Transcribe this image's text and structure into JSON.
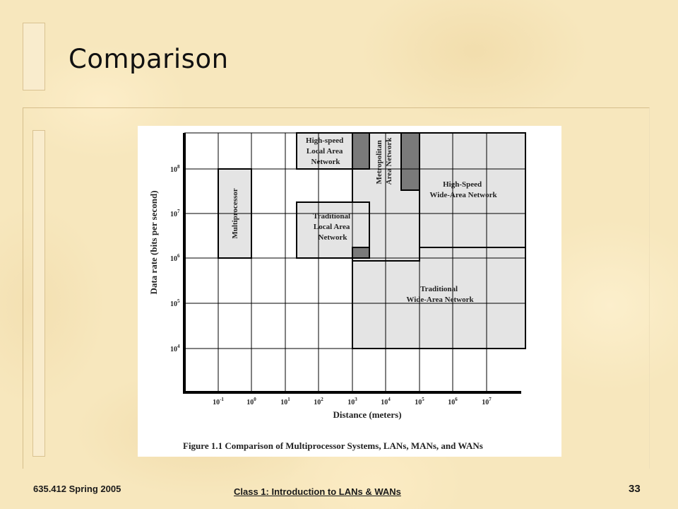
{
  "slide": {
    "title": "Comparison",
    "footer_left": "635.412 Spring 2005",
    "footer_center": "Class 1:  Introduction to LANs & WANs",
    "page_number": "33"
  },
  "figure": {
    "caption": "Figure 1.1   Comparison of Multiprocessor Systems, LANs, MANs, and WANs",
    "y_axis_label": "Data rate (bits per second)",
    "x_axis_label": "Distance (meters)",
    "x_ticks": [
      {
        "base": "10",
        "exp": "-1"
      },
      {
        "base": "10",
        "exp": "0"
      },
      {
        "base": "10",
        "exp": "1"
      },
      {
        "base": "10",
        "exp": "2"
      },
      {
        "base": "10",
        "exp": "3"
      },
      {
        "base": "10",
        "exp": "4"
      },
      {
        "base": "10",
        "exp": "5"
      },
      {
        "base": "10",
        "exp": "6"
      },
      {
        "base": "10",
        "exp": "7"
      }
    ],
    "y_ticks": [
      {
        "base": "10",
        "exp": "8"
      },
      {
        "base": "10",
        "exp": "7"
      },
      {
        "base": "10",
        "exp": "6"
      },
      {
        "base": "10",
        "exp": "5"
      },
      {
        "base": "10",
        "exp": "4"
      }
    ],
    "regions": {
      "multiprocessor": "Multiprocessor",
      "hs_lan": [
        "High-speed",
        "Local Area",
        "Network"
      ],
      "man": [
        "Metropolitan",
        "Area Network"
      ],
      "hs_wan": [
        "High-Speed",
        "Wide-Area Network"
      ],
      "trad_lan": [
        "Traditional",
        "Local Area",
        "Network"
      ],
      "trad_wan": [
        "Traditional",
        "Wide-Area Network"
      ]
    },
    "colors": {
      "region_fill": "#e4e4e4",
      "overlap_fill": "#7a7a7a",
      "grid": "#000000"
    }
  }
}
